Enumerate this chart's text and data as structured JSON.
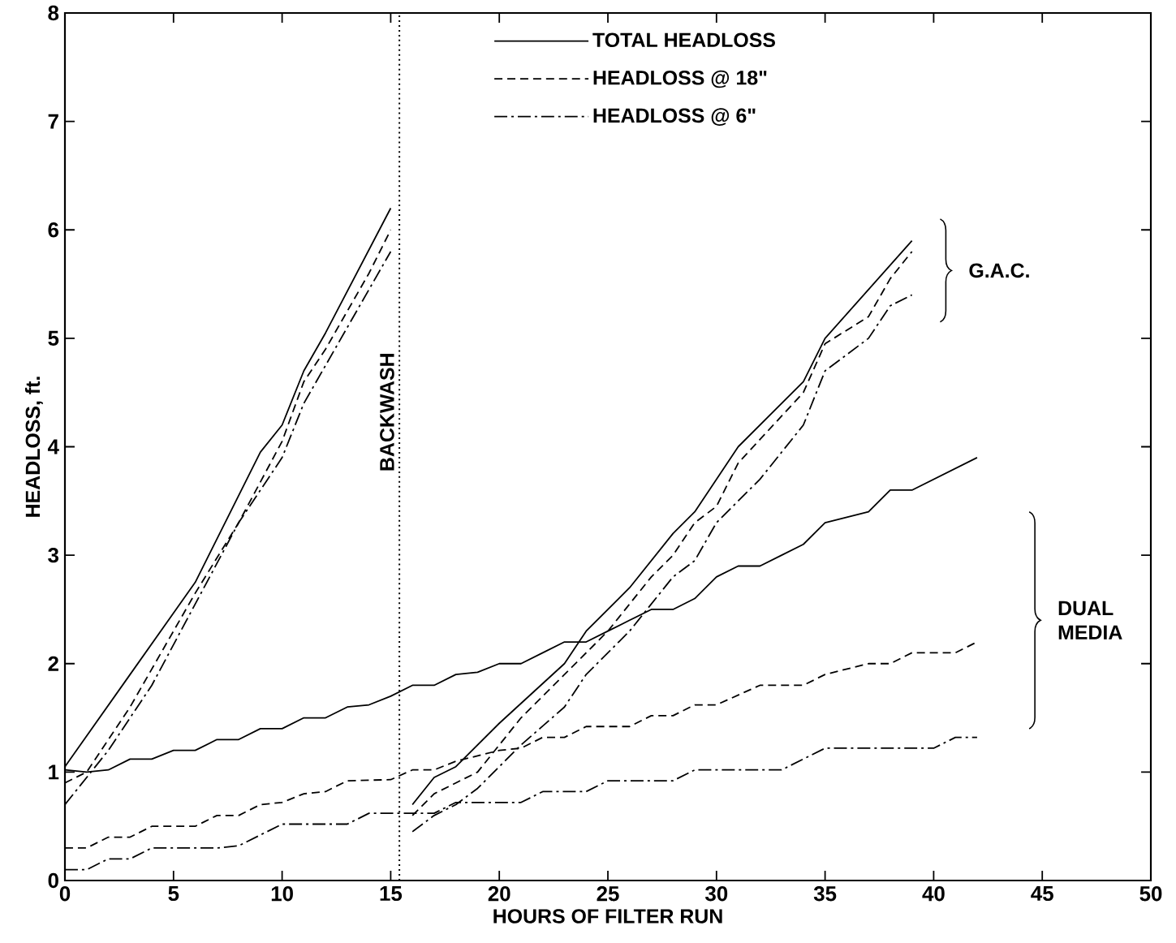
{
  "chart_data": {
    "type": "line",
    "xlabel": "HOURS OF FILTER RUN",
    "ylabel": "HEADLOSS, ft.",
    "xlim": [
      0,
      50
    ],
    "ylim": [
      0,
      8
    ],
    "xticks": [
      0,
      5,
      10,
      15,
      20,
      25,
      30,
      35,
      40,
      45,
      50
    ],
    "yticks": [
      0,
      1,
      2,
      3,
      4,
      5,
      6,
      7,
      8
    ],
    "legend": "top",
    "series": [
      {
        "name": "TOTAL HEADLOSS",
        "color": "#000000",
        "line_style": "solid",
        "x": [
          0,
          3,
          6,
          9,
          10,
          11,
          12,
          15
        ],
        "values": [
          1.05,
          1.9,
          2.75,
          3.95,
          4.2,
          4.7,
          5.05,
          6.2
        ]
      },
      {
        "name": "HEADLOSS @ 18\"",
        "color": "#000000",
        "line_style": "dashed",
        "x": [
          0,
          1,
          3,
          6,
          8,
          10,
          11,
          12,
          14,
          15
        ],
        "values": [
          0.9,
          1.0,
          1.6,
          2.65,
          3.3,
          4.05,
          4.6,
          4.9,
          5.6,
          6.0
        ]
      },
      {
        "name": "HEADLOSS @ 6\"",
        "color": "#000000",
        "line_style": "dashdot",
        "x": [
          0,
          2,
          4,
          6,
          8,
          10,
          11,
          12,
          14,
          15
        ],
        "values": [
          0.7,
          1.2,
          1.8,
          2.55,
          3.3,
          3.9,
          4.4,
          4.75,
          5.45,
          5.8
        ]
      },
      {
        "color": "#000000",
        "line_style": "solid",
        "x": [
          16,
          17,
          18,
          20,
          23,
          24,
          26,
          28,
          29,
          31,
          34,
          35,
          39
        ],
        "values": [
          0.7,
          0.95,
          1.05,
          1.45,
          2.0,
          2.3,
          2.7,
          3.2,
          3.4,
          4.0,
          4.6,
          5.0,
          5.9
        ]
      },
      {
        "color": "#000000",
        "line_style": "dashed",
        "x": [
          16,
          17,
          18,
          19,
          21,
          23,
          25,
          27,
          28,
          29,
          30,
          31,
          34,
          35,
          37,
          38,
          39
        ],
        "values": [
          0.6,
          0.8,
          0.9,
          1.0,
          1.5,
          1.9,
          2.3,
          2.8,
          3.0,
          3.3,
          3.45,
          3.85,
          4.5,
          4.95,
          5.2,
          5.55,
          5.8
        ]
      },
      {
        "color": "#000000",
        "line_style": "dashdot",
        "x": [
          16,
          17,
          18,
          19,
          21,
          23,
          24,
          26,
          28,
          29,
          30,
          32,
          34,
          35,
          37,
          38,
          39
        ],
        "values": [
          0.45,
          0.6,
          0.7,
          0.85,
          1.25,
          1.6,
          1.9,
          2.3,
          2.8,
          2.95,
          3.3,
          3.7,
          4.2,
          4.7,
          5.0,
          5.3,
          5.4
        ]
      },
      {
        "color": "#000000",
        "line_style": "solid",
        "x": [
          0,
          1,
          2,
          3,
          4,
          5,
          6,
          7,
          8,
          9,
          10,
          11,
          12,
          13,
          14,
          15,
          16,
          17,
          18,
          19,
          20,
          21,
          22,
          23,
          24,
          25,
          26,
          27,
          28,
          29,
          30,
          31,
          32,
          33,
          34,
          35,
          36,
          37,
          38,
          39,
          42
        ],
        "values": [
          1.02,
          1.0,
          1.02,
          1.12,
          1.12,
          1.2,
          1.2,
          1.3,
          1.3,
          1.4,
          1.4,
          1.5,
          1.5,
          1.6,
          1.62,
          1.7,
          1.8,
          1.8,
          1.9,
          1.92,
          2.0,
          2.0,
          2.1,
          2.2,
          2.2,
          2.3,
          2.4,
          2.5,
          2.5,
          2.6,
          2.8,
          2.9,
          2.9,
          3.0,
          3.1,
          3.3,
          3.35,
          3.4,
          3.6,
          3.6,
          3.9
        ]
      },
      {
        "color": "#000000",
        "line_style": "dashed",
        "x": [
          0,
          1,
          2,
          3,
          4,
          6,
          7,
          8,
          9,
          10,
          11,
          12,
          13,
          15,
          16,
          17,
          18,
          20,
          21,
          22,
          23,
          24,
          26,
          27,
          28,
          29,
          30,
          32,
          34,
          35,
          37,
          38,
          39,
          41,
          42
        ],
        "values": [
          0.3,
          0.3,
          0.4,
          0.4,
          0.5,
          0.5,
          0.6,
          0.6,
          0.7,
          0.72,
          0.8,
          0.82,
          0.92,
          0.93,
          1.02,
          1.02,
          1.1,
          1.2,
          1.22,
          1.32,
          1.32,
          1.42,
          1.42,
          1.52,
          1.52,
          1.62,
          1.62,
          1.8,
          1.8,
          1.9,
          2.0,
          2.0,
          2.1,
          2.1,
          2.2
        ]
      },
      {
        "color": "#000000",
        "line_style": "dashdot",
        "x": [
          0,
          1,
          2,
          3,
          4,
          7,
          8,
          10,
          13,
          14,
          17,
          18,
          21,
          22,
          24,
          25,
          28,
          29,
          33,
          35,
          40,
          41,
          42
        ],
        "values": [
          0.1,
          0.1,
          0.2,
          0.2,
          0.3,
          0.3,
          0.32,
          0.52,
          0.52,
          0.62,
          0.62,
          0.72,
          0.72,
          0.82,
          0.82,
          0.92,
          0.92,
          1.02,
          1.02,
          1.22,
          1.22,
          1.32,
          1.32
        ]
      }
    ],
    "ref_lines": [
      {
        "axis": "x",
        "value": 15.4,
        "label": "BACKWASH",
        "line_style": "dotted"
      }
    ],
    "annotations": [
      "G.A.C.",
      "DUAL MEDIA"
    ]
  }
}
